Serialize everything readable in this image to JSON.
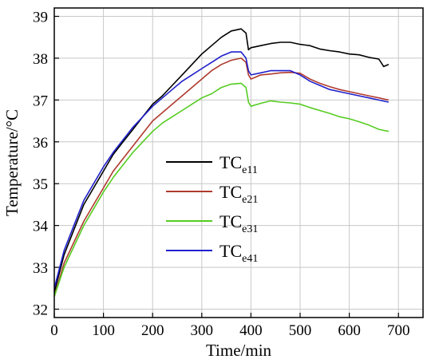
{
  "chart_data": {
    "type": "line",
    "title": "",
    "xlabel": "Time/min",
    "ylabel": "Temperature/°C",
    "xlim": [
      0,
      750
    ],
    "ylim": [
      31.8,
      39.2
    ],
    "xticks": [
      0,
      100,
      200,
      300,
      400,
      500,
      600,
      700
    ],
    "yticks": [
      32,
      33,
      34,
      35,
      36,
      37,
      38,
      39
    ],
    "grid": true,
    "legend_position": "center",
    "series": [
      {
        "name": "TC",
        "subscript": "e11",
        "color": "#000000",
        "x": [
          0,
          20,
          40,
          60,
          80,
          100,
          120,
          140,
          160,
          180,
          200,
          220,
          240,
          260,
          280,
          300,
          320,
          340,
          360,
          380,
          390,
          395,
          400,
          420,
          440,
          460,
          480,
          500,
          520,
          540,
          560,
          580,
          600,
          620,
          640,
          660,
          670,
          680
        ],
        "y": [
          32.4,
          33.3,
          33.9,
          34.5,
          34.9,
          35.3,
          35.7,
          36.0,
          36.3,
          36.6,
          36.9,
          37.1,
          37.35,
          37.6,
          37.85,
          38.1,
          38.3,
          38.5,
          38.65,
          38.7,
          38.6,
          38.2,
          38.25,
          38.3,
          38.35,
          38.38,
          38.38,
          38.33,
          38.3,
          38.22,
          38.18,
          38.15,
          38.1,
          38.08,
          38.02,
          37.98,
          37.8,
          37.85
        ]
      },
      {
        "name": "TC",
        "subscript": "e21",
        "color": "#b03a2e",
        "x": [
          0,
          20,
          40,
          60,
          80,
          100,
          120,
          140,
          160,
          180,
          200,
          220,
          240,
          260,
          280,
          300,
          320,
          340,
          360,
          380,
          390,
          395,
          400,
          420,
          440,
          460,
          480,
          500,
          520,
          540,
          560,
          580,
          600,
          620,
          640,
          660,
          680
        ],
        "y": [
          32.3,
          33.1,
          33.6,
          34.1,
          34.5,
          34.9,
          35.3,
          35.6,
          35.9,
          36.2,
          36.5,
          36.7,
          36.9,
          37.1,
          37.3,
          37.5,
          37.7,
          37.85,
          37.95,
          38.0,
          37.9,
          37.6,
          37.5,
          37.6,
          37.62,
          37.65,
          37.66,
          37.64,
          37.5,
          37.4,
          37.32,
          37.25,
          37.2,
          37.15,
          37.1,
          37.05,
          37.0
        ]
      },
      {
        "name": "TC",
        "subscript": "e31",
        "color": "#55cc22",
        "x": [
          0,
          20,
          40,
          60,
          80,
          100,
          120,
          140,
          160,
          180,
          200,
          220,
          240,
          260,
          280,
          300,
          320,
          340,
          360,
          380,
          390,
          395,
          400,
          420,
          440,
          460,
          480,
          500,
          520,
          540,
          560,
          580,
          600,
          620,
          640,
          660,
          680
        ],
        "y": [
          32.3,
          33.0,
          33.5,
          34.0,
          34.4,
          34.8,
          35.15,
          35.45,
          35.75,
          36.0,
          36.25,
          36.45,
          36.6,
          36.75,
          36.9,
          37.05,
          37.15,
          37.3,
          37.38,
          37.4,
          37.3,
          36.95,
          36.85,
          36.92,
          36.98,
          36.95,
          36.93,
          36.9,
          36.82,
          36.75,
          36.68,
          36.6,
          36.55,
          36.48,
          36.4,
          36.3,
          36.25
        ]
      },
      {
        "name": "TC",
        "subscript": "e41",
        "color": "#1f1fcc",
        "x": [
          0,
          20,
          40,
          60,
          80,
          100,
          120,
          140,
          160,
          180,
          200,
          220,
          240,
          260,
          280,
          300,
          320,
          340,
          360,
          380,
          390,
          395,
          400,
          420,
          440,
          460,
          480,
          500,
          520,
          540,
          560,
          580,
          600,
          620,
          640,
          660,
          680
        ],
        "y": [
          32.5,
          33.4,
          34.0,
          34.6,
          35.0,
          35.4,
          35.75,
          36.05,
          36.35,
          36.6,
          36.85,
          37.05,
          37.25,
          37.45,
          37.6,
          37.75,
          37.9,
          38.05,
          38.15,
          38.15,
          38.0,
          37.7,
          37.6,
          37.65,
          37.7,
          37.7,
          37.7,
          37.6,
          37.45,
          37.35,
          37.25,
          37.2,
          37.15,
          37.1,
          37.05,
          37.0,
          36.95
        ]
      }
    ]
  }
}
